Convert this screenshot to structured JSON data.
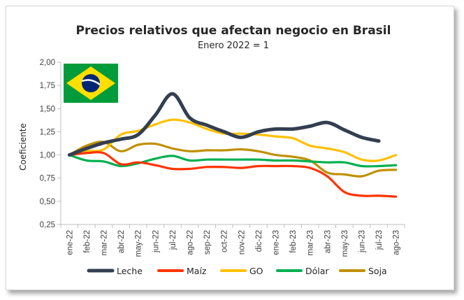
{
  "chart_data": {
    "type": "line",
    "title": "Precios relativos que afectan negocio en Brasil",
    "subtitle": "Enero 2022 = 1",
    "xlabel": "",
    "ylabel": "Coeficiente",
    "ylim": [
      0.25,
      2.0
    ],
    "yticks": [
      "0,25",
      "0,50",
      "0,75",
      "1,00",
      "1,25",
      "1,50",
      "1,75",
      "2,00"
    ],
    "grid": false,
    "legend_position": "bottom",
    "categories": [
      "ene-22",
      "feb-22",
      "mar-22",
      "abr-22",
      "may-22",
      "jun-22",
      "jul-22",
      "ago-22",
      "sep-22",
      "oct-22",
      "nov-22",
      "dic-22",
      "ene-23",
      "feb-23",
      "mar-23",
      "abr-23",
      "may-23",
      "jun-23",
      "jul-23",
      "ago-23"
    ],
    "series": [
      {
        "name": "Leche",
        "color": "#333f50",
        "values": [
          1.0,
          1.07,
          1.13,
          1.17,
          1.22,
          1.43,
          1.66,
          1.4,
          1.32,
          1.25,
          1.19,
          1.25,
          1.28,
          1.28,
          1.31,
          1.35,
          1.27,
          1.19,
          1.15,
          null
        ]
      },
      {
        "name": "Maíz",
        "color": "#ff3300",
        "values": [
          1.0,
          1.02,
          1.02,
          0.9,
          0.92,
          0.89,
          0.85,
          0.85,
          0.87,
          0.87,
          0.86,
          0.88,
          0.88,
          0.88,
          0.86,
          0.77,
          0.6,
          0.56,
          0.56,
          0.55
        ]
      },
      {
        "name": "GO",
        "color": "#ffc000",
        "values": [
          1.0,
          1.04,
          1.06,
          1.22,
          1.26,
          1.33,
          1.38,
          1.35,
          1.28,
          1.23,
          1.23,
          1.22,
          1.2,
          1.18,
          1.1,
          1.07,
          1.03,
          0.95,
          0.94,
          1.0
        ]
      },
      {
        "name": "Dólar",
        "color": "#00b050",
        "values": [
          1.0,
          0.94,
          0.93,
          0.88,
          0.91,
          0.96,
          0.99,
          0.94,
          0.95,
          0.95,
          0.95,
          0.95,
          0.94,
          0.94,
          0.93,
          0.92,
          0.92,
          0.88,
          0.88,
          0.89
        ]
      },
      {
        "name": "Soja",
        "color": "#bf9000",
        "values": [
          1.0,
          1.1,
          1.14,
          1.04,
          1.11,
          1.12,
          1.07,
          1.04,
          1.05,
          1.05,
          1.06,
          1.04,
          1.0,
          0.98,
          0.94,
          0.81,
          0.79,
          0.77,
          0.83,
          0.84
        ]
      }
    ]
  },
  "flag": {
    "name": "brazil-flag",
    "colors": {
      "green": "#009c3b",
      "yellow": "#ffdf00",
      "blue": "#002776",
      "white": "#ffffff"
    }
  }
}
